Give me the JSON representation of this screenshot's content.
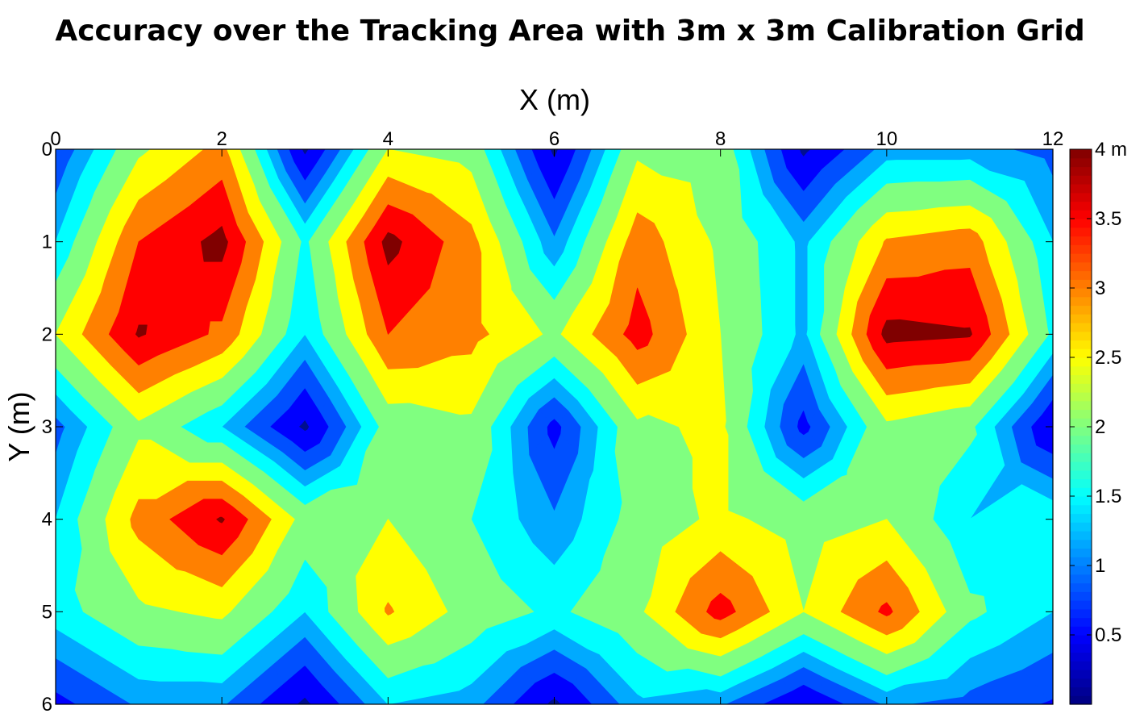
{
  "chart_data": {
    "type": "heatmap",
    "subtype": "filled-contour",
    "title": "Accuracy over the Tracking Area with 3m x 3m Calibration Grid",
    "xlabel": "X (m)",
    "ylabel": "Y (m)",
    "x_axis_position": "top",
    "y_axis_direction": "down",
    "xlim": [
      0,
      12
    ],
    "ylim": [
      0,
      6
    ],
    "x_ticks": [
      0,
      2,
      4,
      6,
      8,
      10,
      12
    ],
    "y_ticks": [
      0,
      1,
      2,
      3,
      4,
      5,
      6
    ],
    "grid": false,
    "colormap": "jet",
    "colorbar": {
      "position": "right",
      "range": [
        0,
        4
      ],
      "ticks": [
        {
          "value": 0.5,
          "label": "0.5"
        },
        {
          "value": 1,
          "label": "1"
        },
        {
          "value": 1.5,
          "label": "1.5"
        },
        {
          "value": 2,
          "label": "2"
        },
        {
          "value": 2.5,
          "label": "2.5"
        },
        {
          "value": 3,
          "label": "3"
        },
        {
          "value": 3.5,
          "label": "3.5"
        },
        {
          "value": 4,
          "label": "4 m"
        }
      ]
    },
    "levels": [
      0,
      0.25,
      0.5,
      0.75,
      1,
      1.25,
      1.5,
      1.75,
      2,
      2.25,
      2.5,
      2.75,
      3,
      3.25,
      3.5,
      3.75,
      4
    ],
    "level_colors": [
      "#000f8f",
      "#0000ff",
      "#0050ff",
      "#00aaff",
      "#00ffff",
      "#80ff80",
      "#ffff00",
      "#ff8000",
      "#ff0000",
      "#800000"
    ],
    "level_boundaries": [
      0,
      0.3,
      0.75,
      1.15,
      1.5,
      1.9,
      2.4,
      2.85,
      3.3,
      3.75,
      4
    ],
    "grid_x": [
      0,
      1,
      2,
      3,
      4,
      5,
      6,
      7,
      8,
      9,
      10,
      11,
      12
    ],
    "grid_y": [
      0,
      1,
      2,
      3,
      4,
      5,
      6
    ],
    "z": [
      [
        0.8,
        2.3,
        3.0,
        0.2,
        2.4,
        2.2,
        0.2,
        2.3,
        2.2,
        0.2,
        1.3,
        1.3,
        1.0
      ],
      [
        1.5,
        3.3,
        3.9,
        1.8,
        3.9,
        3.0,
        1.2,
        3.1,
        2.3,
        1.4,
        2.9,
        3.1,
        1.5
      ],
      [
        2.4,
        3.8,
        3.2,
        1.5,
        3.3,
        3.0,
        2.3,
        3.5,
        2.4,
        1.4,
        3.9,
        3.8,
        1.8
      ],
      [
        1.0,
        2.3,
        1.5,
        0.2,
        2.1,
        2.3,
        0.6,
        2.3,
        2.5,
        0.6,
        2.3,
        2.0,
        0.3
      ],
      [
        1.5,
        3.0,
        3.8,
        2.2,
        2.4,
        1.9,
        1.2,
        2.1,
        2.5,
        2.2,
        2.4,
        1.5,
        1.8
      ],
      [
        1.7,
        2.3,
        2.5,
        1.5,
        2.9,
        2.2,
        1.8,
        2.3,
        3.5,
        2.4,
        3.4,
        2.0,
        1.5
      ],
      [
        0.6,
        1.2,
        1.2,
        0.2,
        1.5,
        1.3,
        0.2,
        1.4,
        1.2,
        0.3,
        1.2,
        1.0,
        0.7
      ]
    ]
  }
}
